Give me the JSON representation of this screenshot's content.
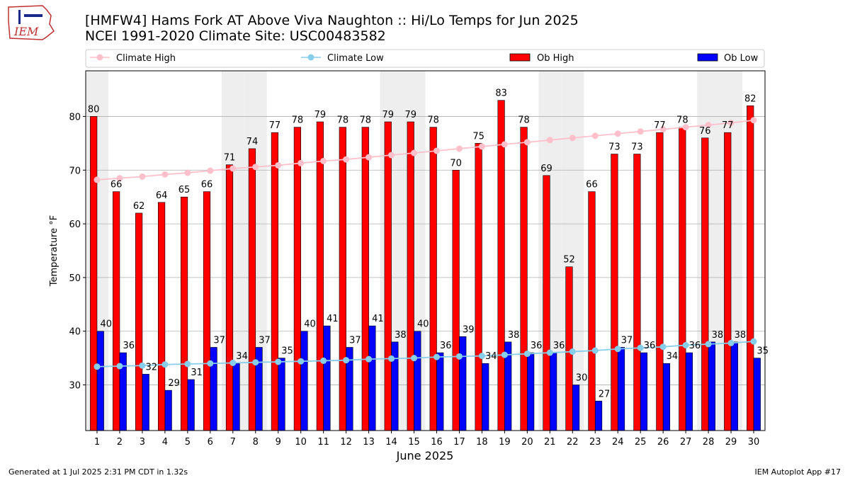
{
  "header": {
    "title_line1": "[HMFW4] Hams Fork  AT Above Viva Naughton :: Hi/Lo Temps for Jun 2025",
    "title_line2": "NCEI 1991-2020 Climate Site: USC00483582"
  },
  "logo": {
    "text": "IEM"
  },
  "footer": {
    "left": "Generated at 1 Jul 2025 2:31 PM CDT in 1.32s",
    "right": "IEM Autoplot App #17"
  },
  "colors": {
    "ob_high": "#ff0000",
    "ob_low": "#0000ff",
    "climate_high": "#ffc0cb",
    "climate_low": "#87ceeb",
    "weekend_shade": "#eeeeee",
    "grid": "#b0b0b0"
  },
  "chart_data": {
    "type": "bar",
    "xlabel": "June 2025",
    "ylabel": "Temperature °F",
    "ylim": [
      21.5,
      88.5
    ],
    "yticks": [
      30,
      40,
      50,
      60,
      70,
      80
    ],
    "grid": "horizontal",
    "legend_position": "top",
    "categories": [
      "1",
      "2",
      "3",
      "4",
      "5",
      "6",
      "7",
      "8",
      "9",
      "10",
      "11",
      "12",
      "13",
      "14",
      "15",
      "16",
      "17",
      "18",
      "19",
      "20",
      "21",
      "22",
      "23",
      "24",
      "25",
      "26",
      "27",
      "28",
      "29",
      "30"
    ],
    "shaded_days": [
      "1",
      "7",
      "8",
      "14",
      "15",
      "21",
      "22",
      "28",
      "29"
    ],
    "series": [
      {
        "name": "Climate High",
        "kind": "line",
        "values": [
          68.2,
          68.5,
          68.8,
          69.2,
          69.5,
          69.9,
          70.3,
          70.6,
          70.9,
          71.3,
          71.7,
          72.0,
          72.4,
          72.8,
          73.2,
          73.6,
          74.0,
          74.4,
          74.8,
          75.2,
          75.6,
          76.0,
          76.4,
          76.8,
          77.2,
          77.6,
          78.0,
          78.4,
          78.8,
          79.3
        ]
      },
      {
        "name": "Climate Low",
        "kind": "line",
        "values": [
          33.4,
          33.5,
          33.6,
          33.8,
          33.9,
          34.0,
          34.1,
          34.2,
          34.3,
          34.4,
          34.5,
          34.6,
          34.8,
          34.9,
          35.0,
          35.2,
          35.3,
          35.4,
          35.6,
          35.8,
          36.0,
          36.2,
          36.4,
          36.7,
          36.9,
          37.1,
          37.4,
          37.6,
          37.8,
          38.1
        ]
      },
      {
        "name": "Ob High",
        "kind": "bar",
        "values": [
          80,
          66,
          62,
          64,
          65,
          66,
          71,
          74,
          77,
          78,
          79,
          78,
          78,
          79,
          79,
          78,
          70,
          75,
          83,
          78,
          69,
          52,
          66,
          73,
          73,
          77,
          78,
          76,
          77,
          82
        ]
      },
      {
        "name": "Ob Low",
        "kind": "bar",
        "values": [
          40,
          36,
          32,
          29,
          31,
          37,
          34,
          37,
          35,
          40,
          41,
          37,
          41,
          38,
          40,
          36,
          39,
          34,
          38,
          36,
          36,
          30,
          27,
          37,
          36,
          34,
          36,
          38,
          38,
          35
        ]
      }
    ]
  }
}
